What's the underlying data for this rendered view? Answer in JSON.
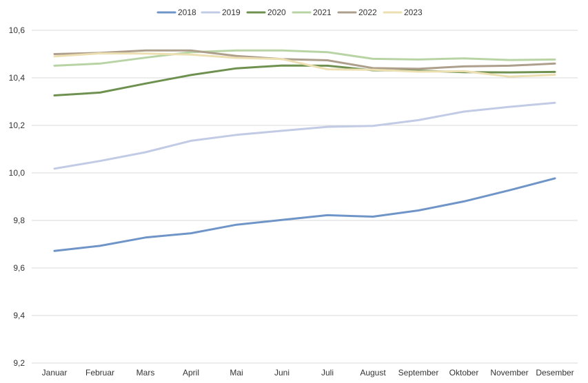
{
  "chart_data": {
    "type": "line",
    "categories": [
      "Januar",
      "Februar",
      "Mars",
      "April",
      "Mai",
      "Juni",
      "Juli",
      "August",
      "September",
      "Oktober",
      "November",
      "Desember"
    ],
    "ylim": [
      9.2,
      10.6
    ],
    "yticks": [
      "9,2",
      "9,4",
      "9,6",
      "9,8",
      "10,0",
      "10,2",
      "10,4",
      "10,6"
    ],
    "grid": true,
    "legend_position": "top",
    "series": [
      {
        "name": "2018",
        "color": "#6f95c8",
        "values": [
          9.672,
          9.693,
          9.728,
          9.746,
          9.782,
          9.802,
          9.822,
          9.816,
          9.842,
          9.88,
          9.927,
          9.977
        ]
      },
      {
        "name": "2019",
        "color": "#c2cbe5",
        "values": [
          10.018,
          10.05,
          10.087,
          10.135,
          10.16,
          10.177,
          10.194,
          10.198,
          10.222,
          10.258,
          10.278,
          10.295
        ]
      },
      {
        "name": "2020",
        "color": "#6e9150",
        "values": [
          10.326,
          10.338,
          10.376,
          10.412,
          10.44,
          10.452,
          10.451,
          10.432,
          10.43,
          10.424,
          10.423,
          10.425
        ]
      },
      {
        "name": "2021",
        "color": "#b9d4a4",
        "values": [
          10.451,
          10.46,
          10.485,
          10.508,
          10.515,
          10.515,
          10.508,
          10.48,
          10.477,
          10.482,
          10.475,
          10.477
        ]
      },
      {
        "name": "2022",
        "color": "#ad9f8c",
        "values": [
          10.5,
          10.505,
          10.515,
          10.515,
          10.492,
          10.479,
          10.474,
          10.441,
          10.438,
          10.448,
          10.451,
          10.46
        ]
      },
      {
        "name": "2023",
        "color": "#ecdfb2",
        "values": [
          10.49,
          10.503,
          10.502,
          10.498,
          10.484,
          10.479,
          10.436,
          10.434,
          10.426,
          10.428,
          10.405,
          10.413
        ]
      }
    ]
  }
}
